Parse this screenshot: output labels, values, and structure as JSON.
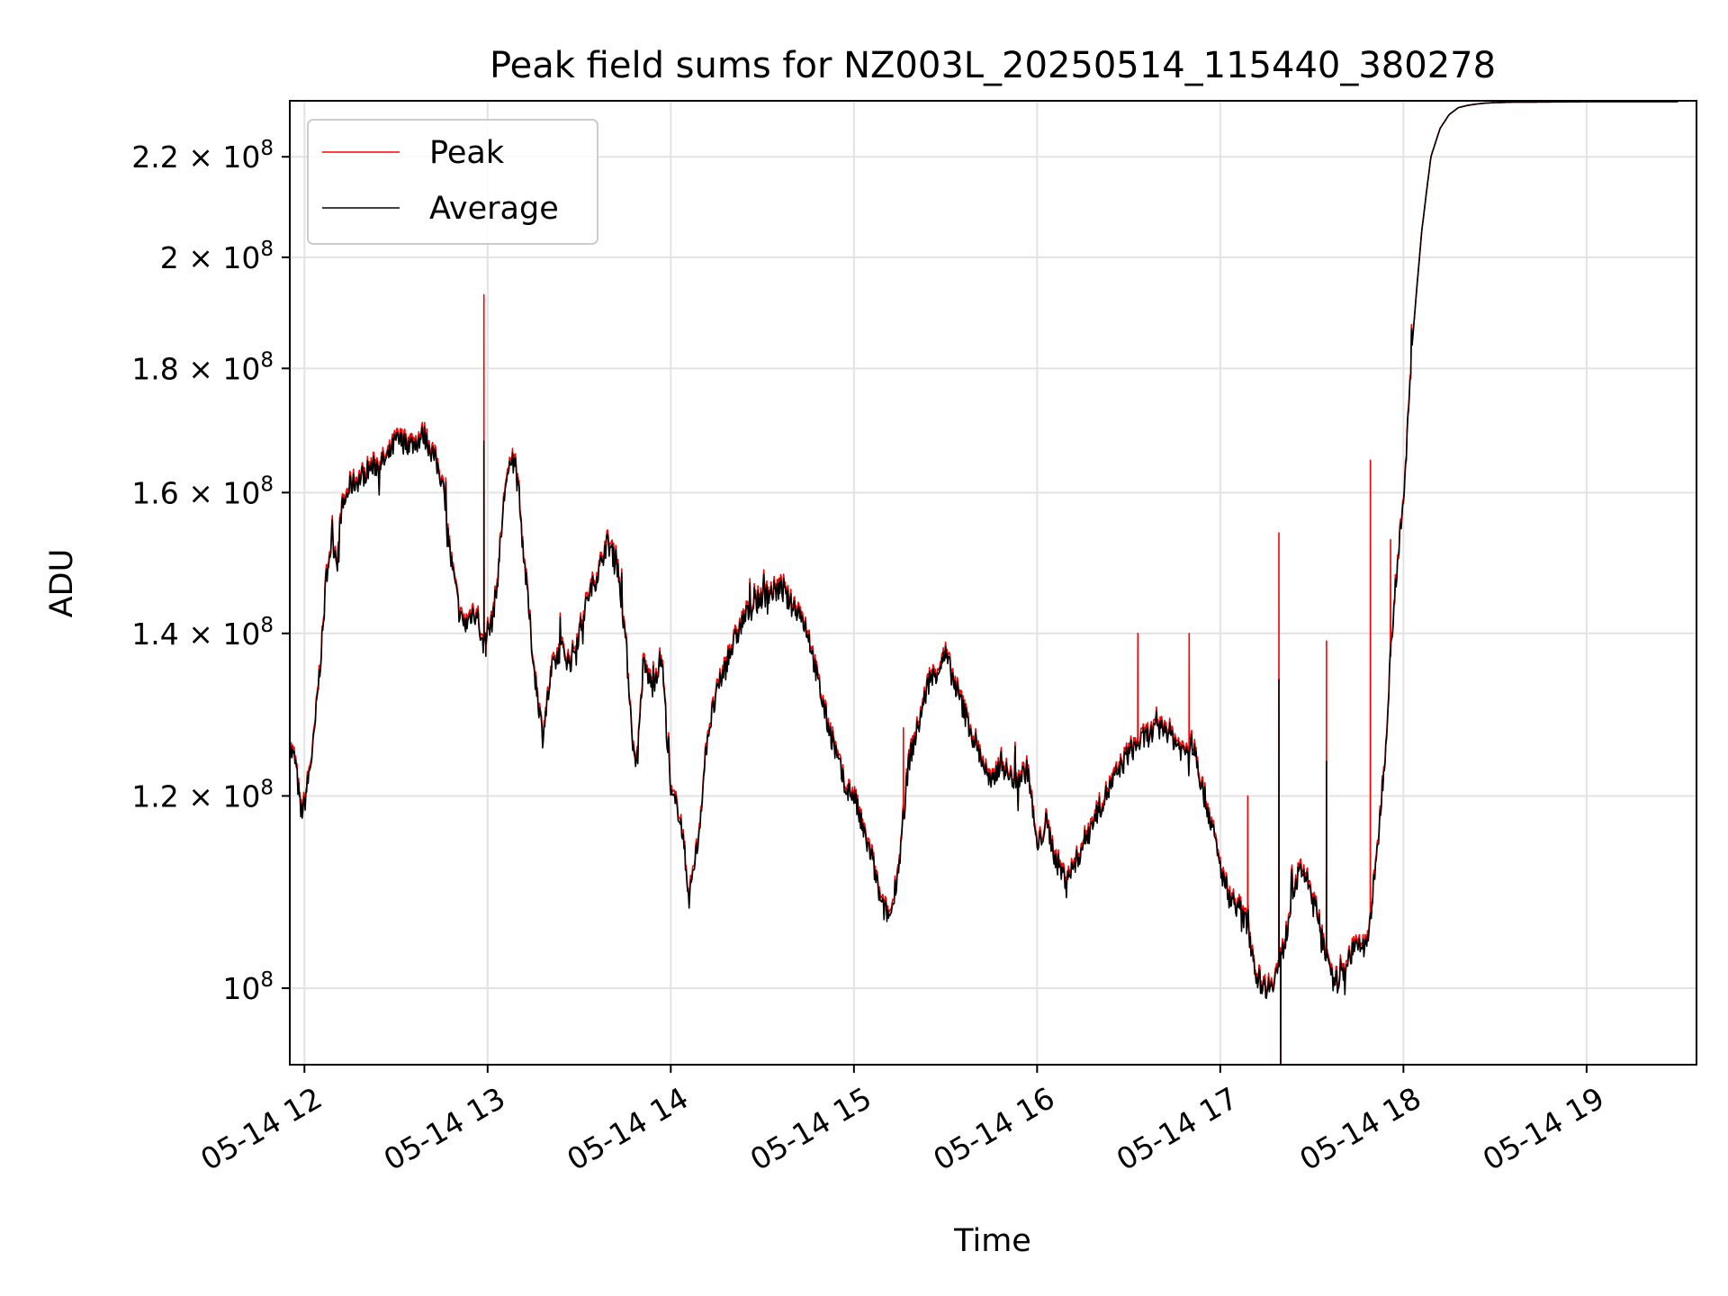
{
  "chart_data": {
    "type": "line",
    "title": "Peak field sums for NZ003L_20250514_115440_380278",
    "xlabel": "Time",
    "ylabel": "ADU",
    "x_unit": "time of day (hours, 2025-05-14)",
    "xlim": [
      11.92,
      19.6
    ],
    "ylim": [
      93000000,
      232000000
    ],
    "y_scale": "log",
    "grid": true,
    "legend_position": "upper left",
    "x_ticks": [
      {
        "value": 12,
        "label": "05-14 12"
      },
      {
        "value": 13,
        "label": "05-14 13"
      },
      {
        "value": 14,
        "label": "05-14 14"
      },
      {
        "value": 15,
        "label": "05-14 15"
      },
      {
        "value": 16,
        "label": "05-14 16"
      },
      {
        "value": 17,
        "label": "05-14 17"
      },
      {
        "value": 18,
        "label": "05-14 18"
      },
      {
        "value": 19,
        "label": "05-14 19"
      }
    ],
    "y_ticks": [
      {
        "value": 100000000,
        "mantissa": "",
        "exponent": "8"
      },
      {
        "value": 120000000,
        "mantissa": "1.2",
        "exponent": "8"
      },
      {
        "value": 140000000,
        "mantissa": "1.4",
        "exponent": "8"
      },
      {
        "value": 160000000,
        "mantissa": "1.6",
        "exponent": "8"
      },
      {
        "value": 180000000,
        "mantissa": "1.8",
        "exponent": "8"
      },
      {
        "value": 200000000,
        "mantissa": "2",
        "exponent": "8"
      },
      {
        "value": 220000000,
        "mantissa": "2.2",
        "exponent": "8"
      }
    ],
    "series": [
      {
        "name": "Peak",
        "color": "#ff0000"
      },
      {
        "name": "Average",
        "color": "#000000"
      }
    ],
    "base_curve": {
      "x": [
        11.92,
        11.95,
        11.98,
        12.0,
        12.05,
        12.1,
        12.12,
        12.15,
        12.18,
        12.2,
        12.25,
        12.3,
        12.35,
        12.45,
        12.5,
        12.6,
        12.65,
        12.7,
        12.75,
        12.8,
        12.85,
        12.88,
        12.92,
        12.95,
        12.97,
        12.99,
        13.02,
        13.05,
        13.1,
        13.15,
        13.2,
        13.25,
        13.3,
        13.35,
        13.4,
        13.45,
        13.5,
        13.55,
        13.6,
        13.65,
        13.7,
        13.75,
        13.8,
        13.82,
        13.85,
        13.9,
        13.95,
        14.0,
        14.05,
        14.1,
        14.15,
        14.2,
        14.25,
        14.3,
        14.4,
        14.5,
        14.6,
        14.65,
        14.7,
        14.75,
        14.8,
        14.85,
        14.9,
        14.95,
        15.0,
        15.05,
        15.1,
        15.15,
        15.2,
        15.25,
        15.3,
        15.35,
        15.4,
        15.45,
        15.5,
        15.6,
        15.7,
        15.75,
        15.8,
        15.85,
        15.9,
        15.95,
        16.0,
        16.05,
        16.1,
        16.15,
        16.2,
        16.3,
        16.4,
        16.5,
        16.6,
        16.7,
        16.8,
        16.85,
        16.9,
        16.95,
        17.0,
        17.05,
        17.1,
        17.15,
        17.2,
        17.25,
        17.3,
        17.35,
        17.4,
        17.45,
        17.5,
        17.55,
        17.6,
        17.65,
        17.7,
        17.75,
        17.8,
        17.85,
        17.9,
        17.95,
        18.0,
        18.05,
        18.1,
        18.15,
        18.2,
        18.25,
        18.3,
        18.35,
        18.4,
        18.45,
        18.5
      ],
      "y": [
        125500000,
        124000000,
        118000000,
        119000000,
        126000000,
        140000000,
        148000000,
        153000000,
        150000000,
        157000000,
        161000000,
        162000000,
        163500000,
        165000000,
        168000000,
        167500000,
        169000000,
        166000000,
        162000000,
        150000000,
        142000000,
        141000000,
        143000000,
        142000000,
        138000000,
        140000000,
        141000000,
        146000000,
        162000000,
        165000000,
        150000000,
        136000000,
        127000000,
        135000000,
        138000000,
        136000000,
        140000000,
        145000000,
        148000000,
        152500000,
        151000000,
        140000000,
        124000000,
        125000000,
        136000000,
        133000000,
        137000000,
        120000000,
        118000000,
        109000000,
        115000000,
        127000000,
        132000000,
        136000000,
        142000000,
        145000000,
        146000000,
        144000000,
        143000000,
        140000000,
        134000000,
        129000000,
        125000000,
        121000000,
        120000000,
        116000000,
        113000000,
        108000000,
        107000000,
        113000000,
        124000000,
        128000000,
        133000000,
        135000000,
        137000000,
        130000000,
        124000000,
        121000000,
        124000000,
        122000000,
        122000000,
        123000000,
        114000000,
        117000000,
        113000000,
        111000000,
        112000000,
        117000000,
        121000000,
        125000000,
        127000000,
        128000000,
        125000000,
        126000000,
        121000000,
        117000000,
        112000000,
        109000000,
        108000000,
        106000000,
        101000000,
        100000000,
        101000000,
        104000000,
        110000000,
        112000000,
        109000000,
        106000000,
        101000000,
        100500000,
        103000000,
        104000000,
        104000000,
        112000000,
        125000000,
        145000000,
        158000000,
        185000000,
        205000000,
        220000000,
        226000000,
        229000000,
        230500000,
        231000000,
        231300000,
        231500000,
        231600000
      ],
      "x_continuation": [
        18.6,
        19.0,
        19.5
      ],
      "y_continuation": [
        231700000,
        231800000,
        231800000
      ]
    },
    "peak_spikes": [
      {
        "x": 12.98,
        "y": 193000000
      },
      {
        "x": 15.27,
        "y": 128000000
      },
      {
        "x": 16.55,
        "y": 140000000
      },
      {
        "x": 16.83,
        "y": 140000000
      },
      {
        "x": 17.15,
        "y": 120000000
      },
      {
        "x": 17.32,
        "y": 154000000
      },
      {
        "x": 17.58,
        "y": 139000000
      },
      {
        "x": 17.82,
        "y": 165000000
      },
      {
        "x": 17.93,
        "y": 153000000
      }
    ],
    "average_spikes": [
      {
        "x": 12.98,
        "y": 168000000
      },
      {
        "x": 17.32,
        "y": 134000000
      },
      {
        "x": 17.58,
        "y": 124000000
      }
    ],
    "average_dips": [
      {
        "x": 12.99,
        "y": 137000000
      },
      {
        "x": 17.33,
        "y": 93000000
      },
      {
        "x": 17.62,
        "y": 101000000
      }
    ]
  }
}
